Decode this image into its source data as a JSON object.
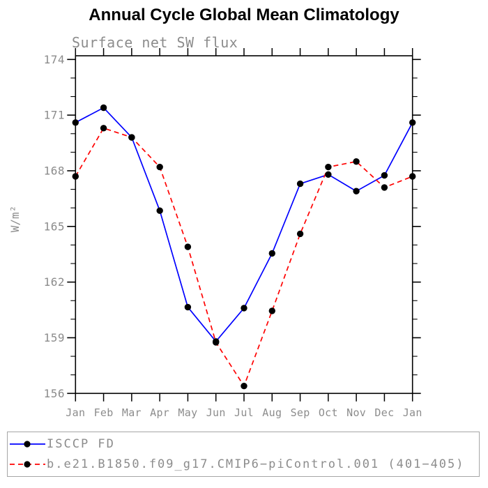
{
  "title": "Annual Cycle Global Mean Climatology",
  "chart_data": {
    "type": "line",
    "title": "Annual Cycle Global Mean Climatology",
    "subtitle": "Surface net SW flux",
    "xlabel": "",
    "ylabel": "W/m²",
    "x_tick_labels": [
      "Jan",
      "Feb",
      "Mar",
      "Apr",
      "May",
      "Jun",
      "Jul",
      "Aug",
      "Sep",
      "Oct",
      "Nov",
      "Dec",
      "Jan"
    ],
    "y_tick_labels": [
      "174",
      "171",
      "168",
      "165",
      "162",
      "159",
      "156"
    ],
    "y_major_ticks": [
      174,
      171,
      168,
      165,
      162,
      159,
      156
    ],
    "y_minor_tick_step": 1,
    "ylim": [
      156,
      174.2
    ],
    "grid": false,
    "legend_position": "bottom-outside",
    "series": [
      {
        "name": "ISCCP FD",
        "color": "#0000ff",
        "line_style": "solid",
        "marker": "filled-circle",
        "marker_color": "#000000",
        "values": [
          170.6,
          171.4,
          169.8,
          165.85,
          160.65,
          158.8,
          160.6,
          163.55,
          167.3,
          167.8,
          166.9,
          167.75,
          170.6
        ]
      },
      {
        "name": "b.e21.B1850.f09_g17.CMIP6−piControl.001 (401−405)",
        "color": "#ff0000",
        "line_style": "dashed",
        "marker": "filled-circle",
        "marker_color": "#000000",
        "values": [
          167.7,
          170.3,
          169.8,
          168.2,
          163.9,
          158.75,
          156.4,
          160.45,
          164.6,
          168.2,
          168.5,
          167.1,
          167.7
        ]
      }
    ]
  },
  "colors": {
    "frame": "#000000",
    "axis_text": "#8c8c8c",
    "subtitle_text": "#969696",
    "legend_border": "#a6a6a6",
    "background": "#ffffff"
  }
}
